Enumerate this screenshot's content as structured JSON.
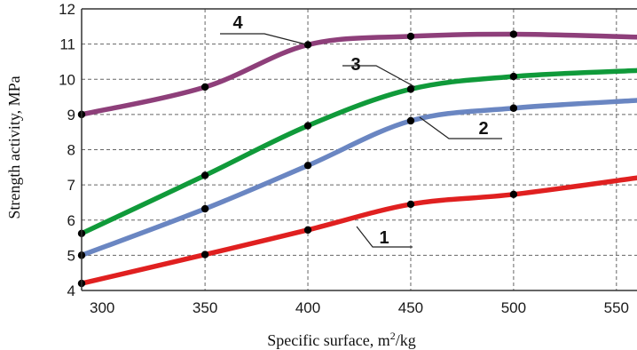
{
  "chart_data": {
    "type": "line",
    "xlabel": "Specific surface, m",
    "xlabel_sup": "2",
    "xlabel_tail": "/kg",
    "ylabel": "Strength activity, MPa",
    "xlim": [
      290,
      560
    ],
    "ylim": [
      4,
      12
    ],
    "x_ticks": [
      "300",
      "350",
      "400",
      "450",
      "500",
      "550"
    ],
    "y_ticks": [
      "4",
      "5",
      "6",
      "7",
      "8",
      "9",
      "10",
      "11",
      "12"
    ],
    "grid": true,
    "series": [
      {
        "name": "1",
        "color": "#e02020",
        "x": [
          290,
          350,
          400,
          450,
          500,
          560
        ],
        "y": [
          4.2,
          5.02,
          5.72,
          6.45,
          6.73,
          7.2
        ]
      },
      {
        "name": "2",
        "color": "#6a86c2",
        "x": [
          290,
          350,
          400,
          450,
          500,
          560
        ],
        "y": [
          5.0,
          6.32,
          7.55,
          8.82,
          9.18,
          9.4
        ]
      },
      {
        "name": "3",
        "color": "#109a3a",
        "x": [
          290,
          350,
          400,
          450,
          500,
          560
        ],
        "y": [
          5.62,
          7.27,
          8.68,
          9.72,
          10.08,
          10.25
        ]
      },
      {
        "name": "4",
        "color": "#8e3f7a",
        "x": [
          290,
          350,
          400,
          450,
          500,
          560
        ],
        "y": [
          9.0,
          9.78,
          10.98,
          11.22,
          11.28,
          11.2
        ]
      }
    ]
  }
}
